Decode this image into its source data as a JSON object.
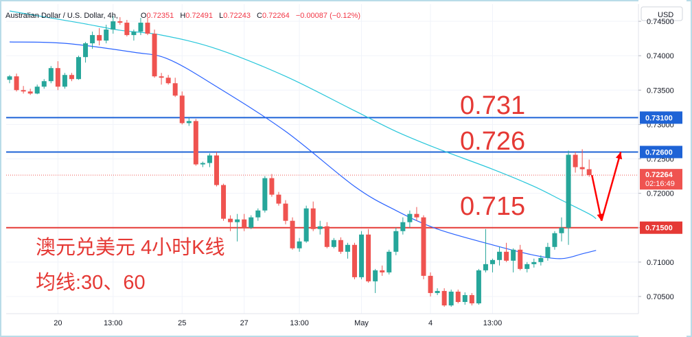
{
  "header": {
    "pair": "Australian Dollar / U.S. Dollar, 4h,",
    "open_label": "O",
    "open": "0.72351",
    "high_label": "H",
    "high": "0.72491",
    "low_label": "L",
    "low": "0.72243",
    "close_label": "C",
    "close": "0.72264",
    "change": "−0.00087 (−0.12%)"
  },
  "price_axis": {
    "currency": "USD",
    "ticks": [
      "0.74500",
      "0.74000",
      "0.73500",
      "0.73000",
      "0.72500",
      "0.72000",
      "0.71500",
      "0.71000",
      "0.70500"
    ],
    "last_price_label": "0.72264",
    "countdown": "02:16:49",
    "level_labels": [
      "0.73100",
      "0.72600",
      "0.71500"
    ]
  },
  "time_axis": {
    "labels": [
      "20",
      "13:00",
      "25",
      "27",
      "13:00",
      "May",
      "4",
      "13:00"
    ]
  },
  "annotations": {
    "level_0731": "0.731",
    "level_0726": "0.726",
    "level_0715": "0.715",
    "title": "澳元兑美元 4小时K线",
    "ma": "均线:30、60"
  },
  "colors": {
    "up": "#26a69a",
    "down": "#ef5350",
    "ma30": "#2962ff",
    "ma60": "#26c6da",
    "level_blue": "#1e63d6",
    "level_red": "#e53935",
    "annotation": "#e53935"
  },
  "chart_data": {
    "type": "candlestick",
    "symbol": "Australian Dollar / U.S. Dollar",
    "interval": "4h",
    "ylim": [
      0.7025,
      0.7475
    ],
    "candles": [
      [
        0.7365,
        0.7372,
        0.736,
        0.737
      ],
      [
        0.737,
        0.7374,
        0.7348,
        0.735
      ],
      [
        0.735,
        0.7356,
        0.7345,
        0.7348
      ],
      [
        0.7348,
        0.7352,
        0.7343,
        0.7345
      ],
      [
        0.7345,
        0.7358,
        0.7344,
        0.7355
      ],
      [
        0.7355,
        0.7366,
        0.7352,
        0.7363
      ],
      [
        0.7363,
        0.7385,
        0.736,
        0.7382
      ],
      [
        0.7382,
        0.7392,
        0.735,
        0.7355
      ],
      [
        0.7355,
        0.7375,
        0.7352,
        0.7372
      ],
      [
        0.7372,
        0.7375,
        0.7363,
        0.7366
      ],
      [
        0.7366,
        0.74,
        0.7365,
        0.7398
      ],
      [
        0.7398,
        0.742,
        0.739,
        0.7418
      ],
      [
        0.7418,
        0.7435,
        0.741,
        0.743
      ],
      [
        0.743,
        0.744,
        0.7415,
        0.7422
      ],
      [
        0.7422,
        0.7445,
        0.7418,
        0.7438
      ],
      [
        0.7438,
        0.7458,
        0.7432,
        0.745
      ],
      [
        0.745,
        0.7456,
        0.7445,
        0.7448
      ],
      [
        0.7448,
        0.7452,
        0.7428,
        0.743
      ],
      [
        0.743,
        0.7438,
        0.7422,
        0.7435
      ],
      [
        0.7435,
        0.7455,
        0.743,
        0.7448
      ],
      [
        0.7448,
        0.7455,
        0.743,
        0.7432
      ],
      [
        0.7432,
        0.7438,
        0.7368,
        0.737
      ],
      [
        0.737,
        0.7375,
        0.7358,
        0.7368
      ],
      [
        0.7368,
        0.7372,
        0.7358,
        0.736
      ],
      [
        0.736,
        0.7368,
        0.734,
        0.7342
      ],
      [
        0.7342,
        0.7348,
        0.73,
        0.7302
      ],
      [
        0.7302,
        0.731,
        0.7298,
        0.7305
      ],
      [
        0.7305,
        0.7308,
        0.724,
        0.7242
      ],
      [
        0.7242,
        0.7246,
        0.7238,
        0.7244
      ],
      [
        0.7244,
        0.7258,
        0.7238,
        0.7255
      ],
      [
        0.7255,
        0.726,
        0.721,
        0.7212
      ],
      [
        0.7212,
        0.7214,
        0.716,
        0.7163
      ],
      [
        0.7163,
        0.7168,
        0.7145,
        0.7158
      ],
      [
        0.7158,
        0.717,
        0.713,
        0.7162
      ],
      [
        0.7162,
        0.717,
        0.7145,
        0.715
      ],
      [
        0.715,
        0.7168,
        0.7148,
        0.7165
      ],
      [
        0.7165,
        0.7178,
        0.716,
        0.7175
      ],
      [
        0.7175,
        0.7225,
        0.7172,
        0.7222
      ],
      [
        0.7222,
        0.7228,
        0.7195,
        0.7198
      ],
      [
        0.7198,
        0.7202,
        0.7182,
        0.7185
      ],
      [
        0.7185,
        0.719,
        0.7155,
        0.716
      ],
      [
        0.716,
        0.7165,
        0.7118,
        0.712
      ],
      [
        0.712,
        0.7135,
        0.7115,
        0.713
      ],
      [
        0.713,
        0.7182,
        0.7128,
        0.7178
      ],
      [
        0.7178,
        0.7188,
        0.7145,
        0.7148
      ],
      [
        0.7148,
        0.716,
        0.714,
        0.7152
      ],
      [
        0.7152,
        0.7158,
        0.712,
        0.7122
      ],
      [
        0.7122,
        0.7135,
        0.712,
        0.7132
      ],
      [
        0.7132,
        0.7136,
        0.7112,
        0.7115
      ],
      [
        0.7115,
        0.7128,
        0.7105,
        0.7125
      ],
      [
        0.7125,
        0.7128,
        0.7075,
        0.7078
      ],
      [
        0.7078,
        0.7145,
        0.7075,
        0.714
      ],
      [
        0.714,
        0.7148,
        0.707,
        0.7072
      ],
      [
        0.7072,
        0.709,
        0.7055,
        0.7088
      ],
      [
        0.7088,
        0.7095,
        0.708,
        0.7085
      ],
      [
        0.7085,
        0.7118,
        0.7082,
        0.7115
      ],
      [
        0.7115,
        0.715,
        0.711,
        0.7145
      ],
      [
        0.7145,
        0.7165,
        0.714,
        0.7158
      ],
      [
        0.7158,
        0.7175,
        0.715,
        0.717
      ],
      [
        0.717,
        0.718,
        0.716,
        0.7165
      ],
      [
        0.7165,
        0.7168,
        0.7075,
        0.708
      ],
      [
        0.708,
        0.7085,
        0.705,
        0.7055
      ],
      [
        0.7055,
        0.7062,
        0.7052,
        0.7058
      ],
      [
        0.7058,
        0.7062,
        0.7035,
        0.7037
      ],
      [
        0.7037,
        0.706,
        0.7035,
        0.7057
      ],
      [
        0.7057,
        0.706,
        0.704,
        0.7042
      ],
      [
        0.7042,
        0.7056,
        0.7038,
        0.7052
      ],
      [
        0.7052,
        0.7055,
        0.7037,
        0.704
      ],
      [
        0.704,
        0.709,
        0.7038,
        0.7088
      ],
      [
        0.7088,
        0.7148,
        0.7085,
        0.7097
      ],
      [
        0.7097,
        0.7105,
        0.7085,
        0.7103
      ],
      [
        0.7103,
        0.7122,
        0.7095,
        0.7115
      ],
      [
        0.7115,
        0.7128,
        0.71,
        0.7102
      ],
      [
        0.7102,
        0.712,
        0.7085,
        0.7118
      ],
      [
        0.7118,
        0.7125,
        0.7088,
        0.709
      ],
      [
        0.709,
        0.71,
        0.7085,
        0.7097
      ],
      [
        0.7097,
        0.7105,
        0.7092,
        0.71
      ],
      [
        0.71,
        0.711,
        0.7095,
        0.7106
      ],
      [
        0.7106,
        0.7128,
        0.7102,
        0.7122
      ],
      [
        0.7122,
        0.7145,
        0.7118,
        0.7142
      ],
      [
        0.7142,
        0.7165,
        0.713,
        0.715
      ],
      [
        0.715,
        0.7262,
        0.7125,
        0.7256
      ],
      [
        0.7256,
        0.726,
        0.723,
        0.7238
      ],
      [
        0.7238,
        0.7264,
        0.7225,
        0.7235
      ],
      [
        0.7235,
        0.7249,
        0.7224,
        0.72264
      ]
    ],
    "ma": [
      {
        "name": "30",
        "color": "#2962ff",
        "values": [
          [
            0,
            0.742
          ],
          [
            8,
            0.7418
          ],
          [
            18,
            0.7405
          ],
          [
            23,
            0.7395
          ],
          [
            30,
            0.7355
          ],
          [
            40,
            0.729
          ],
          [
            50,
            0.721
          ],
          [
            56,
            0.7175
          ],
          [
            62,
            0.7148
          ],
          [
            70,
            0.7125
          ],
          [
            76,
            0.711
          ],
          [
            80,
            0.7105
          ],
          [
            83,
            0.7112
          ],
          [
            85,
            0.7117
          ]
        ]
      },
      {
        "name": "60",
        "color": "#26c6da",
        "values": [
          [
            0,
            0.7465
          ],
          [
            10,
            0.7448
          ],
          [
            16,
            0.7437
          ],
          [
            22,
            0.743
          ],
          [
            30,
            0.741
          ],
          [
            40,
            0.737
          ],
          [
            50,
            0.732
          ],
          [
            56,
            0.729
          ],
          [
            62,
            0.7265
          ],
          [
            70,
            0.7235
          ],
          [
            76,
            0.721
          ],
          [
            80,
            0.719
          ],
          [
            84,
            0.717
          ],
          [
            85,
            0.7163
          ]
        ]
      }
    ],
    "levels": [
      {
        "value": 0.731,
        "color": "#1e63d6"
      },
      {
        "value": 0.726,
        "color": "#1e63d6"
      },
      {
        "value": 0.715,
        "color": "#e53935"
      }
    ],
    "x_tick_labels": [
      {
        "index": 7,
        "label": "20"
      },
      {
        "index": 15,
        "label": "13:00"
      },
      {
        "index": 25,
        "label": "25"
      },
      {
        "index": 34,
        "label": "27"
      },
      {
        "index": 42,
        "label": "13:00"
      },
      {
        "index": 51,
        "label": "May"
      },
      {
        "index": 61,
        "label": "4"
      },
      {
        "index": 70,
        "label": "13:00"
      }
    ],
    "projection": [
      [
        0.72264,
        0.7185
      ],
      [
        0.7185,
        0.726
      ]
    ]
  }
}
